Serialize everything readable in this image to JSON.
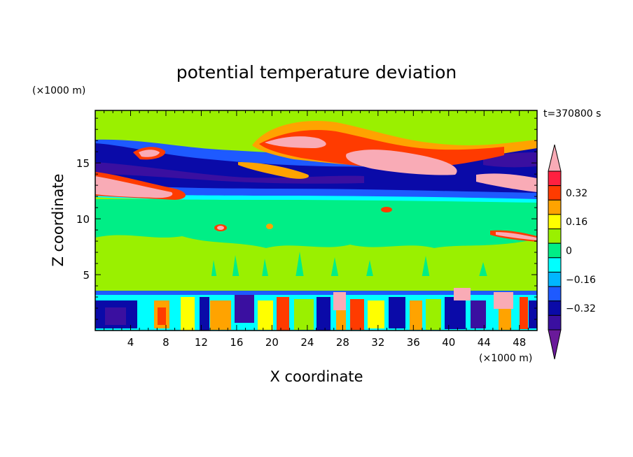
{
  "chart_data": {
    "type": "heatmap",
    "title": "potential temperature deviation",
    "xlabel": "X coordinate",
    "ylabel": "Z coordinate",
    "x_units": "(×1000 m)",
    "y_units": "(×1000 m)",
    "time_label": "t=370800 s",
    "xlim": [
      0,
      50
    ],
    "ylim": [
      0,
      19.7
    ],
    "x_ticks": [
      4,
      8,
      12,
      16,
      20,
      24,
      28,
      32,
      36,
      40,
      44,
      48
    ],
    "y_ticks": [
      5,
      10,
      15
    ],
    "x_tick_labels": [
      "4",
      "8",
      "12",
      "16",
      "20",
      "24",
      "28",
      "32",
      "36",
      "40",
      "44",
      "48"
    ],
    "y_tick_labels": [
      "5",
      "10",
      "15"
    ],
    "colorbar": {
      "levels": [
        -0.4,
        -0.32,
        -0.24,
        -0.16,
        -0.08,
        0,
        0.08,
        0.16,
        0.24,
        0.32,
        0.4
      ],
      "labeled_levels": [
        "0.32",
        "0.16",
        "0",
        "−0.16",
        "−0.32"
      ],
      "labeled_values": [
        0.32,
        0.16,
        0,
        -0.16,
        -0.32
      ],
      "colors": [
        "#6a1a9a",
        "#3a0fa0",
        "#0a0aa8",
        "#1e5aff",
        "#00b6ff",
        "#00ffff",
        "#00ee86",
        "#9af000",
        "#ffff00",
        "#ffa300",
        "#ff3b00",
        "#ff2040",
        "#f9abb6"
      ],
      "extend": "both"
    },
    "features": [
      {
        "desc": "negative band",
        "z_range": [
          13,
          16
        ],
        "value": -0.36
      },
      {
        "desc": "positive layer",
        "z_range": [
          15.8,
          18.5
        ],
        "value": 0.35
      },
      {
        "desc": "near neutral mid troposphere",
        "z_range": [
          3.5,
          12
        ],
        "value": 0.02
      },
      {
        "desc": "mixed layer",
        "z_range": [
          0,
          3.5
        ],
        "value_range": [
          -0.4,
          0.4
        ]
      }
    ]
  }
}
